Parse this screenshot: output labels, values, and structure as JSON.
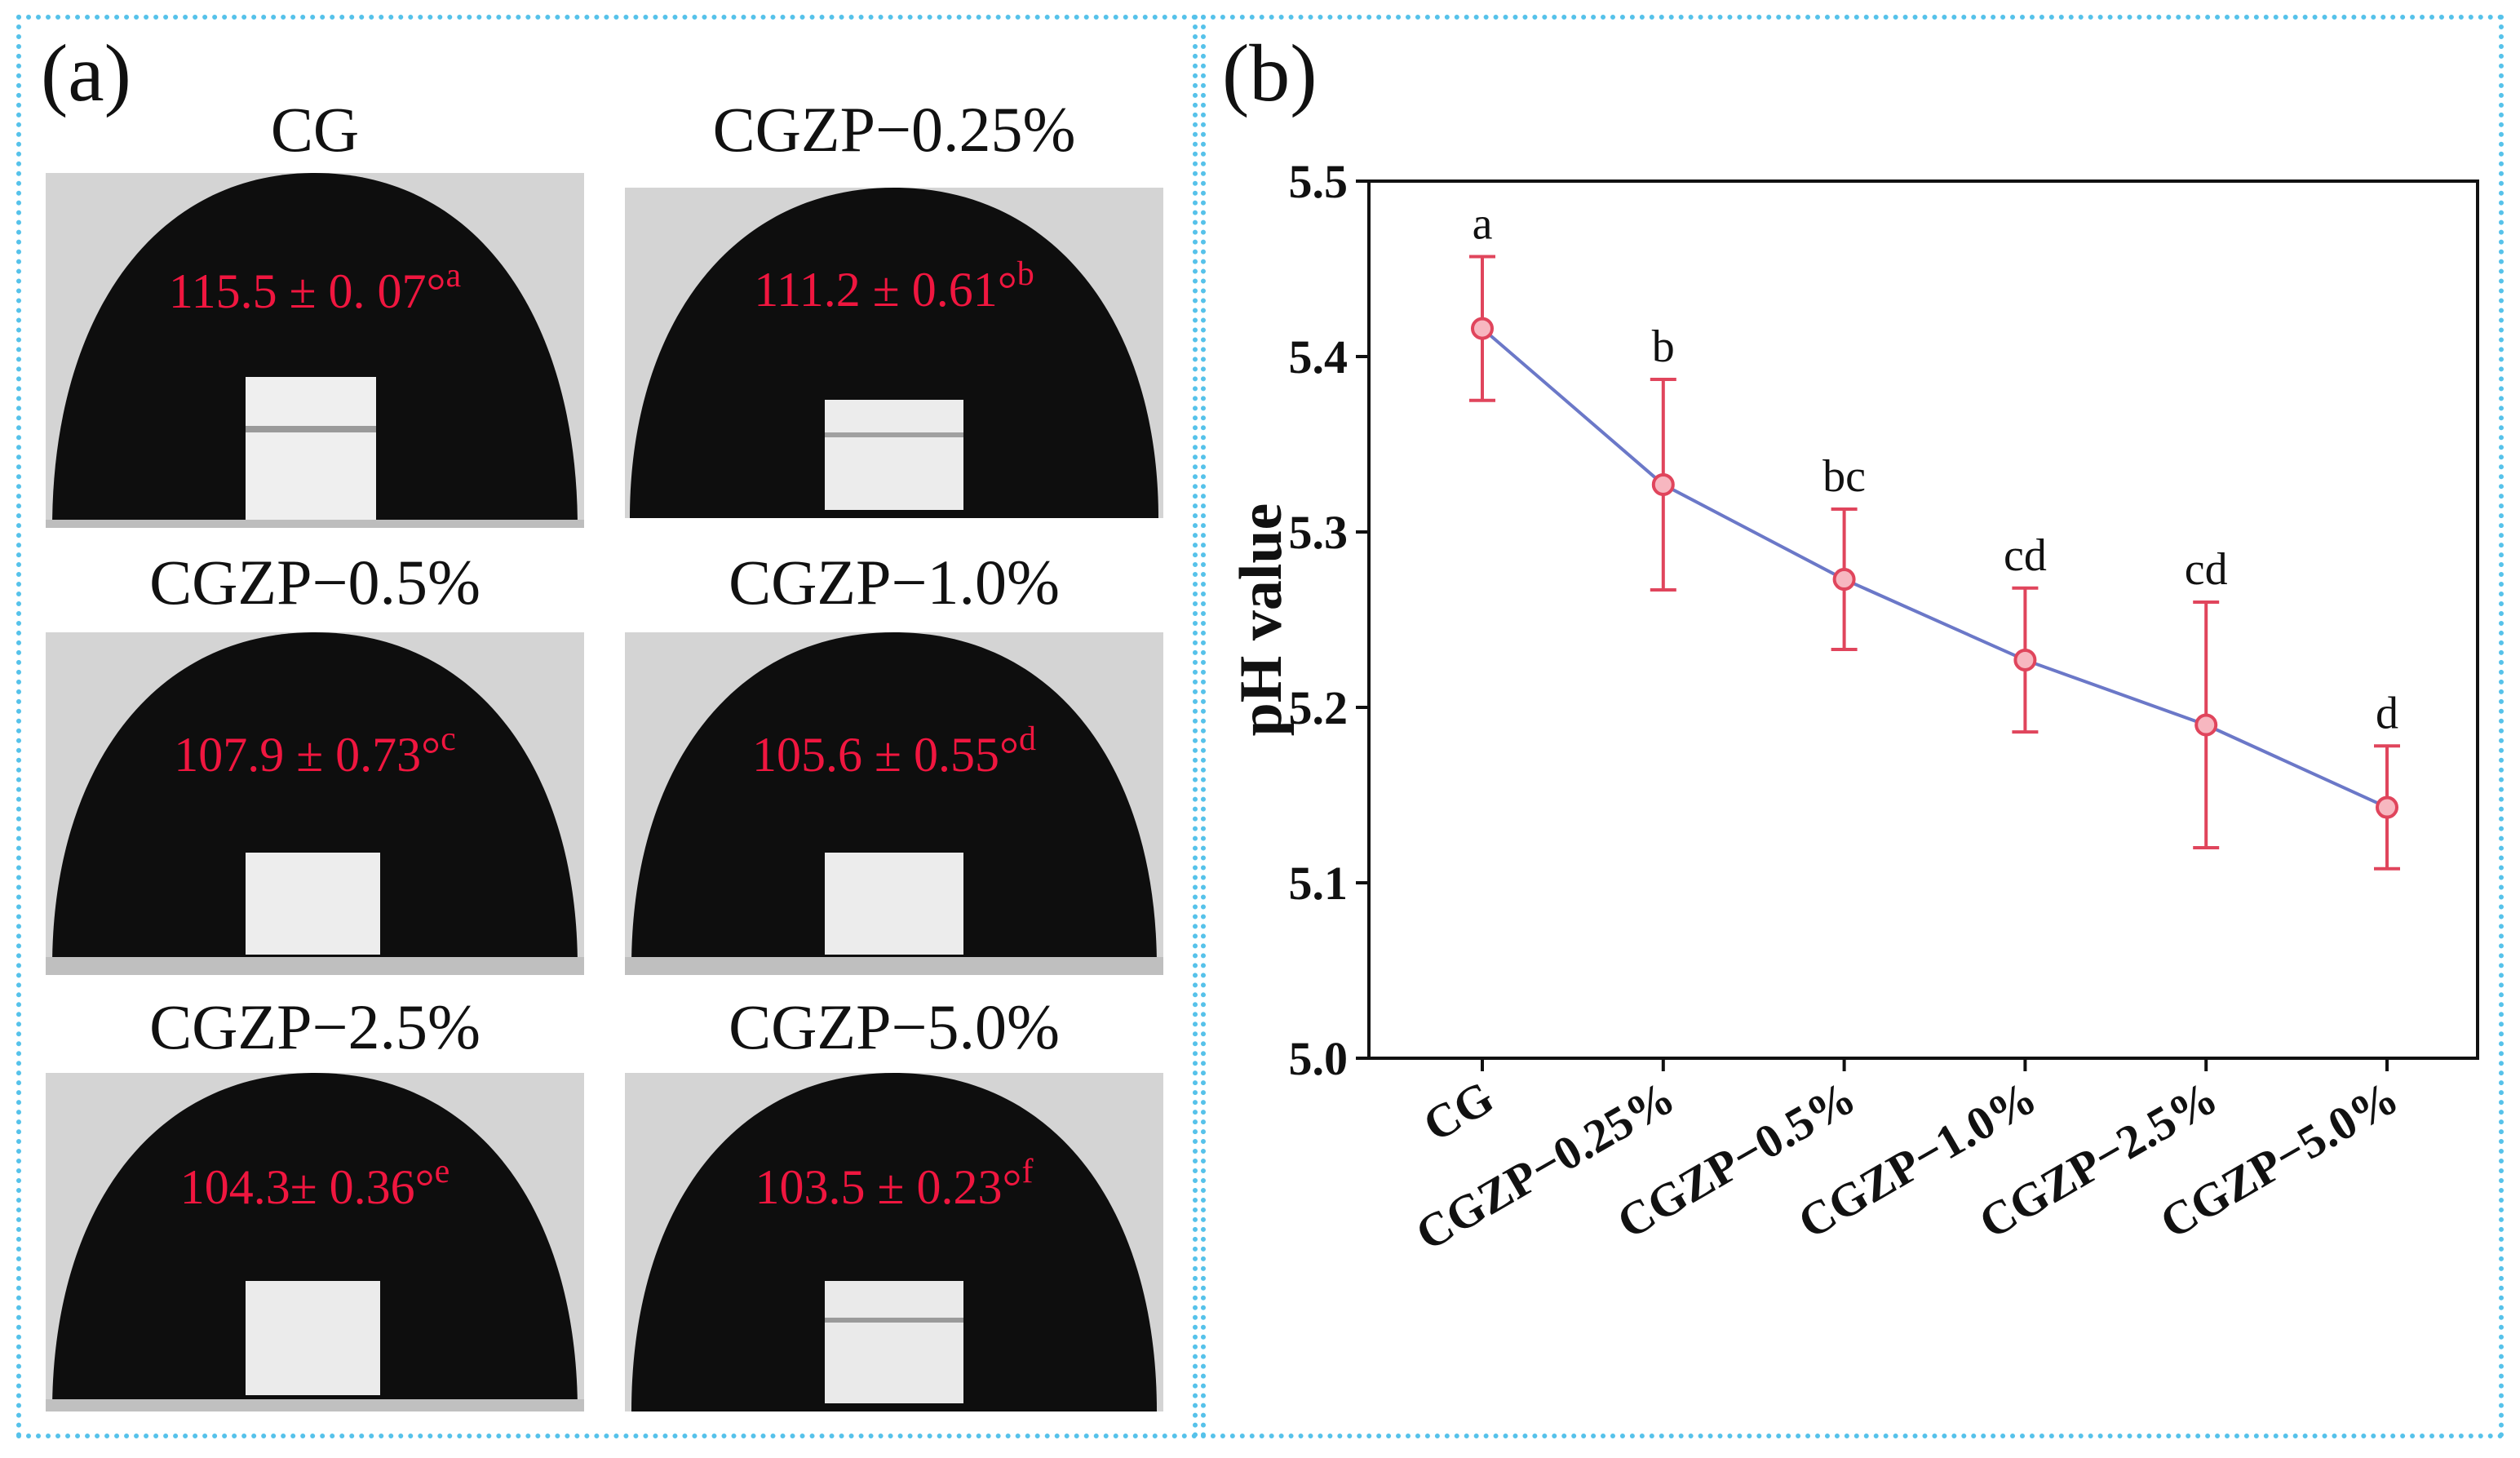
{
  "panel_a": {
    "label": "(a)",
    "images": [
      {
        "title": "CG",
        "angle": "115.5 ± 0. 07°",
        "letter": "a"
      },
      {
        "title": "CGZP−0.25%",
        "angle": "111.2 ± 0.61°",
        "letter": "b"
      },
      {
        "title": "CGZP−0.5%",
        "angle": "107.9 ± 0.73°",
        "letter": "c"
      },
      {
        "title": "CGZP−1.0%",
        "angle": "105.6 ± 0.55°",
        "letter": "d"
      },
      {
        "title": "CGZP−2.5%",
        "angle": "104.3± 0.36°",
        "letter": "e"
      },
      {
        "title": "CGZP−5.0%",
        "angle": "103.5 ± 0.23°",
        "letter": "f"
      }
    ]
  },
  "panel_b": {
    "label": "(b)"
  },
  "colors": {
    "line": "#6b78c8",
    "marker": "#e0455c",
    "error": "#e0455c",
    "annotation_text": "#f0163f",
    "border": "#56c2ea"
  },
  "chart_data": {
    "type": "line",
    "title": "",
    "xlabel": "",
    "ylabel": "pH value",
    "categories": [
      "CG",
      "CGZP−0.25%",
      "CGZP−0.5%",
      "CGZP−1.0%",
      "CGZP−2.5%",
      "CGZP−5.0%"
    ],
    "values": [
      5.416,
      5.327,
      5.273,
      5.227,
      5.19,
      5.143
    ],
    "errors": [
      0.041,
      0.06,
      0.04,
      0.041,
      0.07,
      0.035
    ],
    "significance_letters": [
      "a",
      "b",
      "bc",
      "cd",
      "cd",
      "d"
    ],
    "ylim": [
      5.0,
      5.5
    ],
    "yticks": [
      "5.0",
      "5.1",
      "5.2",
      "5.3",
      "5.4",
      "5.5"
    ],
    "grid": false
  }
}
